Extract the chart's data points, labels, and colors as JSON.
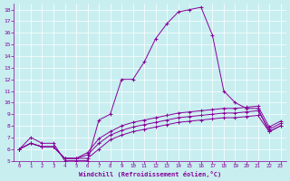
{
  "xlabel": "Windchill (Refroidissement éolien,°C)",
  "xlim": [
    -0.5,
    23.5
  ],
  "ylim": [
    5,
    18.5
  ],
  "xticks": [
    0,
    1,
    2,
    3,
    4,
    5,
    6,
    7,
    8,
    9,
    10,
    11,
    12,
    13,
    14,
    15,
    16,
    17,
    18,
    19,
    20,
    21,
    22,
    23
  ],
  "yticks": [
    5,
    6,
    7,
    8,
    9,
    10,
    11,
    12,
    13,
    14,
    15,
    16,
    17,
    18
  ],
  "bg_color": "#c8eef0",
  "line_color": "#880099",
  "grid_color": "#ffffff",
  "lines": [
    [
      6.0,
      7.0,
      6.5,
      6.5,
      5.0,
      5.0,
      5.0,
      8.5,
      9.0,
      12.0,
      12.0,
      13.5,
      15.5,
      16.8,
      17.8,
      18.0,
      18.2,
      15.8,
      11.0,
      10.0,
      9.5,
      9.5,
      7.5,
      8.0
    ],
    [
      6.0,
      6.5,
      6.2,
      6.2,
      5.2,
      5.2,
      5.2,
      6.0,
      6.8,
      7.2,
      7.5,
      7.7,
      7.9,
      8.1,
      8.3,
      8.4,
      8.5,
      8.6,
      8.7,
      8.7,
      8.8,
      8.9,
      7.5,
      8.0
    ],
    [
      6.0,
      6.5,
      6.2,
      6.2,
      5.2,
      5.2,
      5.5,
      6.5,
      7.2,
      7.6,
      7.9,
      8.1,
      8.3,
      8.5,
      8.7,
      8.8,
      8.9,
      9.0,
      9.1,
      9.1,
      9.2,
      9.3,
      7.7,
      8.2
    ],
    [
      6.0,
      6.5,
      6.2,
      6.2,
      5.2,
      5.2,
      5.7,
      6.9,
      7.5,
      8.0,
      8.3,
      8.5,
      8.7,
      8.9,
      9.1,
      9.2,
      9.3,
      9.4,
      9.5,
      9.5,
      9.6,
      9.7,
      7.9,
      8.4
    ]
  ]
}
